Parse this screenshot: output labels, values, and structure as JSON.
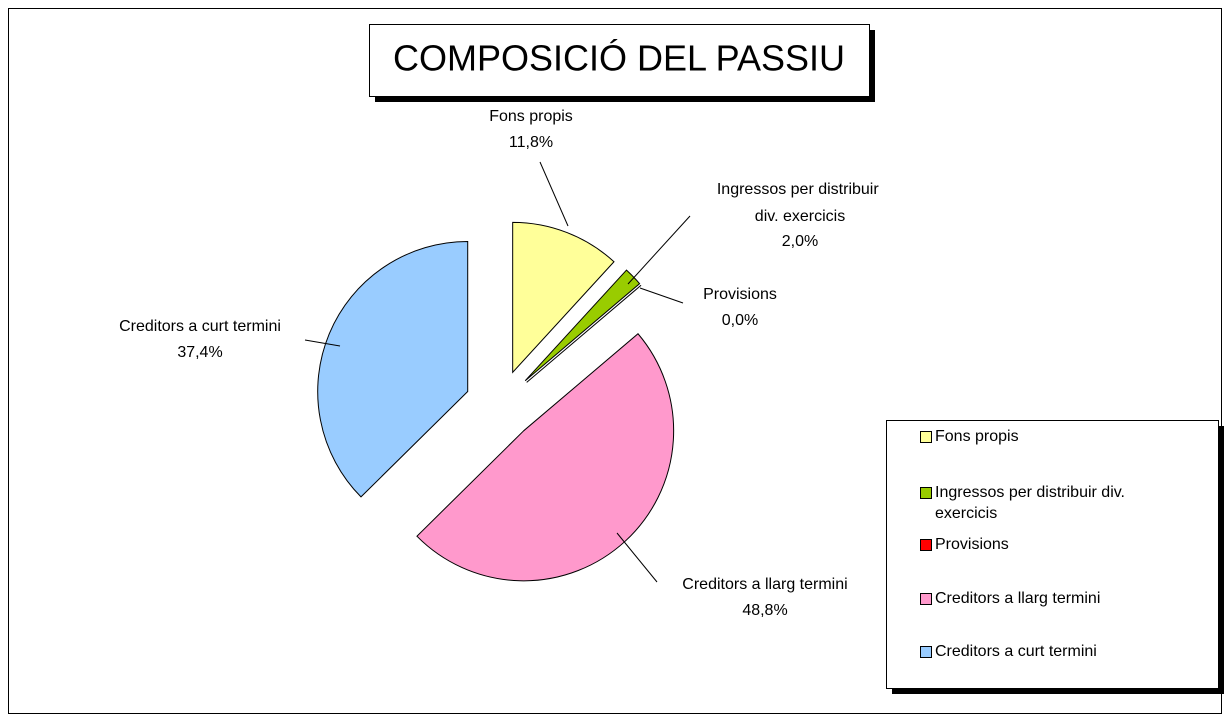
{
  "chart_data": {
    "type": "pie",
    "title": "COMPOSICIÓ DEL PASSIU",
    "categories": [
      "Fons propis",
      "Ingressos per distribuir div. exercicis",
      "Provisions",
      "Creditors a llarg termini",
      "Creditors a curt termini"
    ],
    "values": [
      11.8,
      2.0,
      0.0,
      48.8,
      37.4
    ],
    "value_labels": [
      "11,8%",
      "2,0%",
      "0,0%",
      "48,8%",
      "37,4%"
    ],
    "colors": [
      "#ffff99",
      "#99cc00",
      "#ff0000",
      "#ff99cc",
      "#99ccff"
    ],
    "legend": "right"
  }
}
